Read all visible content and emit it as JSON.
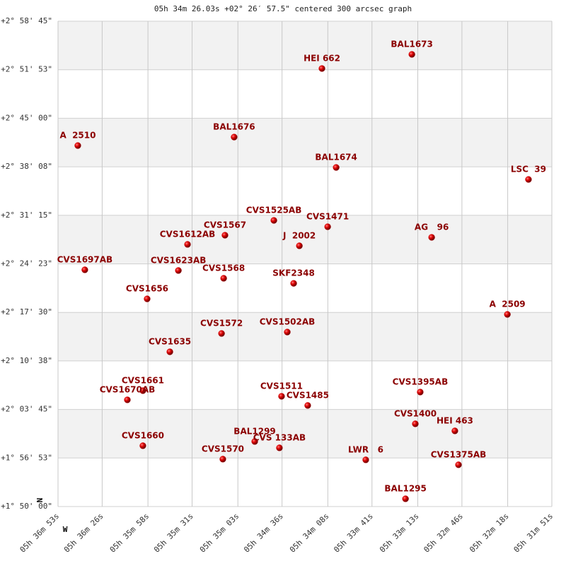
{
  "chart_data": {
    "type": "scatter",
    "title": "05h 34m 26.03s +02° 26′ 57.5\" centered 300 arcsec graph",
    "compass": {
      "north": "N",
      "west": "W"
    },
    "color": "#cc0000",
    "grid": true,
    "xlim": [
      2213,
      1911
    ],
    "xticks": [
      {
        "value": 2213,
        "label": "05h 36m 53s"
      },
      {
        "value": 2186,
        "label": "05h 36m 26s"
      },
      {
        "value": 2158,
        "label": "05h 35m 58s"
      },
      {
        "value": 2131,
        "label": "05h 35m 31s"
      },
      {
        "value": 2103,
        "label": "05h 35m 03s"
      },
      {
        "value": 2076,
        "label": "05h 34m 36s"
      },
      {
        "value": 2048,
        "label": "05h 34m 08s"
      },
      {
        "value": 2021,
        "label": "05h 33m 41s"
      },
      {
        "value": 1993,
        "label": "05h 33m 13s"
      },
      {
        "value": 1966,
        "label": "05h 32m 46s"
      },
      {
        "value": 1938,
        "label": "05h 32m 18s"
      },
      {
        "value": 1911,
        "label": "05h 31m 51s"
      }
    ],
    "ylim": [
      6600,
      10725
    ],
    "yticks": [
      {
        "value": 6600,
        "label": "+1° 50' 00\""
      },
      {
        "value": 7012.5,
        "label": "+1° 56' 53\""
      },
      {
        "value": 7425,
        "label": "+2° 03' 45\""
      },
      {
        "value": 7837.5,
        "label": "+2° 10' 38\""
      },
      {
        "value": 8250,
        "label": "+2° 17' 30\""
      },
      {
        "value": 8662.5,
        "label": "+2° 24' 23\""
      },
      {
        "value": 9075,
        "label": "+2° 31' 15\""
      },
      {
        "value": 9487.5,
        "label": "+2° 38' 08\""
      },
      {
        "value": 9900,
        "label": "+2° 45' 00\""
      },
      {
        "value": 10312.5,
        "label": "+2° 51' 53\""
      },
      {
        "value": 10725,
        "label": "+2° 58' 45\""
      }
    ],
    "point_labels": [
      "HEI 662",
      "BAL1673",
      "A  2510",
      "BAL1676",
      "BAL1674",
      "LSC  39",
      "CVS1525AB",
      "CVS1471",
      "CVS1567",
      "CVS1612AB",
      "J  2002",
      "AG   96",
      "CVS1697AB",
      "CVS1623AB",
      "CVS1568",
      "SKF2348",
      "CVS1656",
      "A  2509",
      "CVS1572",
      "CVS1502AB",
      "CVS1635",
      "CVS1661",
      "CVS1670AB",
      "CVS1511",
      "CVS1485",
      "CVS1395AB",
      "CVS1400",
      "HEI 463",
      "CVS1660",
      "BAL1299",
      "CVS 133AB",
      "CVS1570",
      "LWR   6",
      "CVS1375AB",
      "BAL1295"
    ],
    "x": [
      2051.6,
      1996.6,
      2200.9,
      2105.3,
      2042.9,
      1925.3,
      2081,
      2048.1,
      2110.9,
      2133.8,
      2065.4,
      1984.5,
      2196.6,
      2139.4,
      2111.7,
      2068.9,
      2158.5,
      1938.2,
      2113,
      2072.8,
      2144.6,
      2161.1,
      2170.6,
      2076.3,
      2060.3,
      1991.5,
      1994.5,
      1970.3,
      2161.1,
      2092.7,
      2077.6,
      2112.2,
      2024.8,
      1968.1,
      2000.5
    ],
    "values": [
      10323,
      10443,
      9668,
      9740,
      9482,
      9380,
      9032,
      8978,
      8906,
      8828,
      8816,
      8888,
      8612,
      8606,
      8540,
      8497,
      8365,
      8233,
      8071,
      8083,
      7915,
      7585,
      7507,
      7537,
      7459,
      7573,
      7303,
      7243,
      7117,
      7153,
      7099,
      7003,
      6997,
      6955,
      6666
    ]
  }
}
